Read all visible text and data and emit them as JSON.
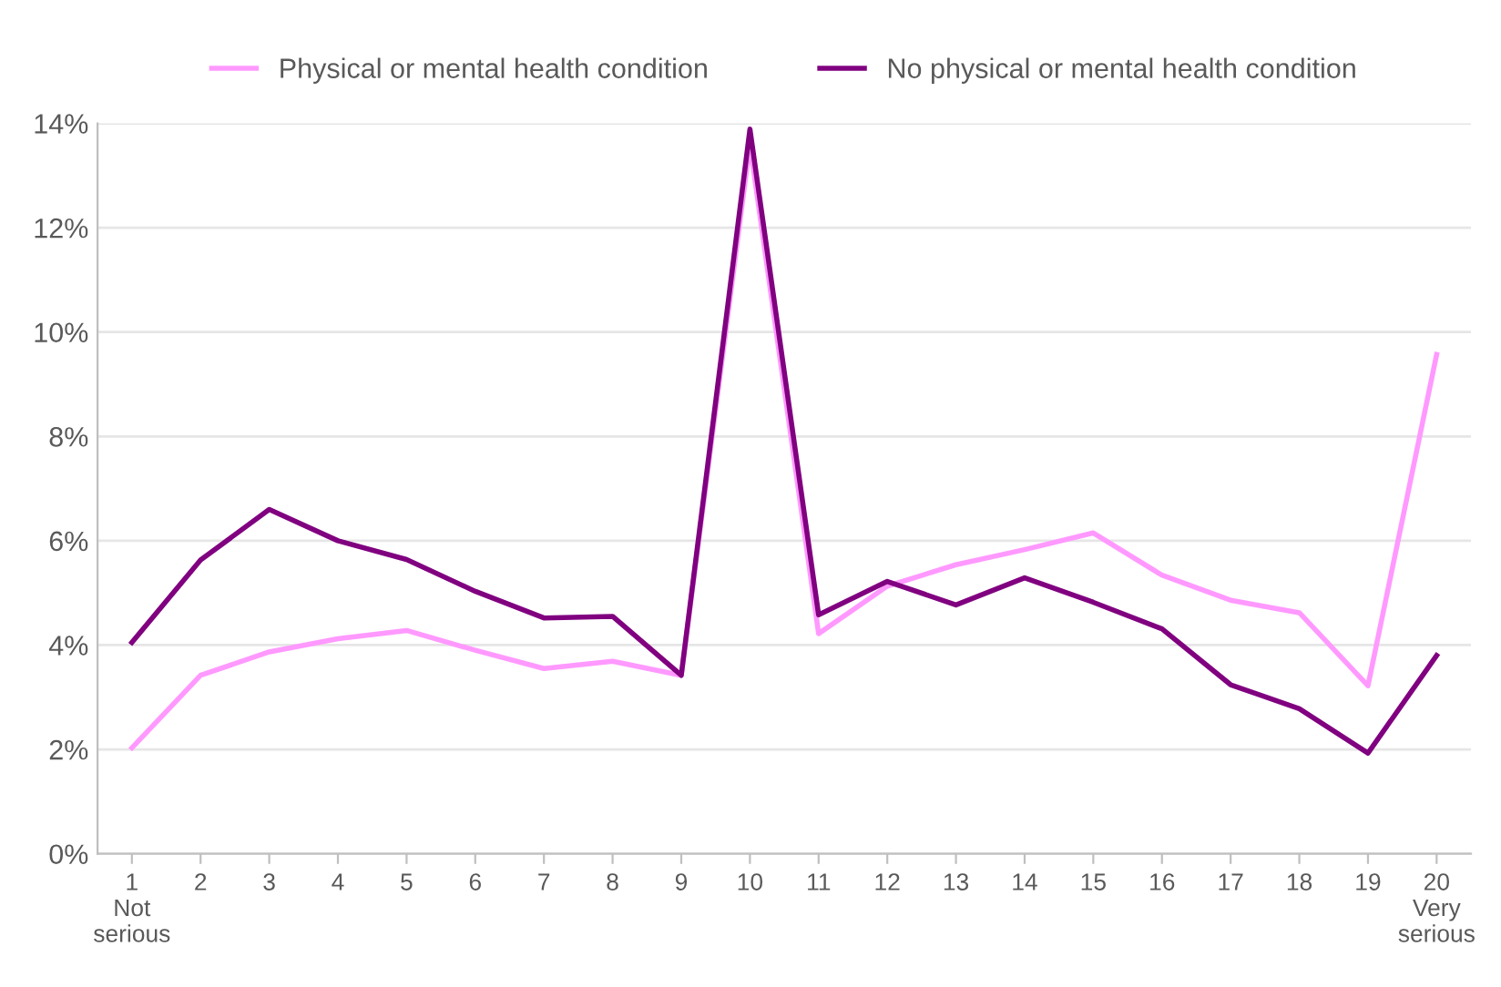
{
  "chart_data": {
    "type": "line",
    "categories": [
      "1\nNot\nserious",
      "2",
      "3",
      "4",
      "5",
      "6",
      "7",
      "8",
      "9",
      "10",
      "11",
      "12",
      "13",
      "14",
      "15",
      "16",
      "17",
      "18",
      "19",
      "20\nVery\nserious"
    ],
    "series": [
      {
        "name": "Physical or mental health condition",
        "color": "#ff99ff",
        "values": [
          2.03,
          3.42,
          3.87,
          4.12,
          4.28,
          3.9,
          3.55,
          3.69,
          3.42,
          13.6,
          4.22,
          5.13,
          5.54,
          5.83,
          6.15,
          5.34,
          4.86,
          4.62,
          3.22,
          9.57
        ]
      },
      {
        "name": "No physical or mental health condition",
        "color": "#800080",
        "values": [
          4.05,
          5.63,
          6.6,
          6.0,
          5.64,
          5.03,
          4.52,
          4.55,
          3.42,
          13.89,
          4.58,
          5.22,
          4.77,
          5.29,
          4.82,
          4.31,
          3.24,
          2.78,
          1.93,
          3.8
        ]
      }
    ],
    "ylim": [
      0,
      14
    ],
    "yticks": [
      {
        "value": 0,
        "label": "0%"
      },
      {
        "value": 2,
        "label": "2%"
      },
      {
        "value": 4,
        "label": "4%"
      },
      {
        "value": 6,
        "label": "6%"
      },
      {
        "value": 8,
        "label": "8%"
      },
      {
        "value": 10,
        "label": "10%"
      },
      {
        "value": 12,
        "label": "12%"
      },
      {
        "value": 14,
        "label": "14%"
      }
    ],
    "grid": "y",
    "legend": "top",
    "marker": "none",
    "line_style": "solid"
  }
}
